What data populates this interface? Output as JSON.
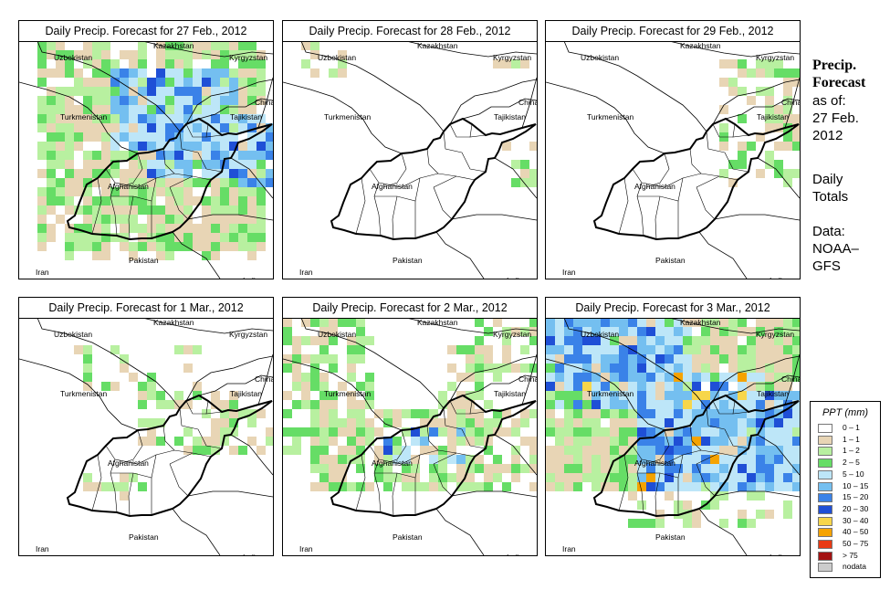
{
  "panels": [
    {
      "title": "Daily Precip. Forecast for  27 Feb., 2012",
      "wet": [
        [
          0.05,
          0.95,
          0.0,
          0.85,
          0.8
        ],
        [
          0.15,
          0.95,
          0.3,
          0.9,
          0.5
        ]
      ],
      "blue": [
        [
          0.35,
          0.85,
          0.08,
          0.45,
          0.75
        ],
        [
          0.5,
          0.9,
          0.3,
          0.55,
          0.8
        ],
        [
          0.8,
          1.0,
          0.3,
          0.6,
          0.5
        ]
      ],
      "seed": 7
    },
    {
      "title": "Daily Precip. Forecast for  28 Feb., 2012",
      "wet": [
        [
          0.05,
          0.25,
          0.0,
          0.12,
          0.35
        ],
        [
          0.72,
          0.95,
          0.05,
          0.15,
          0.35
        ],
        [
          0.85,
          1.0,
          0.42,
          0.6,
          0.4
        ]
      ],
      "blue": [],
      "seed": 11
    },
    {
      "title": "Daily Precip. Forecast for  29 Feb., 2012",
      "wet": [
        [
          0.65,
          1.0,
          0.05,
          0.6,
          0.45
        ],
        [
          0.88,
          1.0,
          0.05,
          0.4,
          0.45
        ]
      ],
      "blue": [],
      "seed": 19
    },
    {
      "title": "Daily Precip. Forecast for  1 Mar., 2012",
      "wet": [
        [
          0.2,
          0.7,
          0.1,
          0.3,
          0.3
        ],
        [
          0.45,
          1.0,
          0.3,
          0.55,
          0.45
        ],
        [
          0.25,
          0.5,
          0.65,
          0.75,
          0.3
        ]
      ],
      "blue": [],
      "seed": 23
    },
    {
      "title": "Daily Precip. Forecast for  2 Mar., 2012",
      "wet": [
        [
          0.0,
          0.35,
          0.0,
          0.55,
          0.6
        ],
        [
          0.1,
          1.0,
          0.35,
          0.7,
          0.65
        ],
        [
          0.7,
          1.0,
          0.0,
          0.2,
          0.5
        ],
        [
          0.6,
          0.85,
          0.1,
          0.4,
          0.45
        ]
      ],
      "blue": [
        [
          0.35,
          0.7,
          0.45,
          0.6,
          0.3
        ]
      ],
      "seed": 31
    },
    {
      "title": "Daily Precip. Forecast for  3 Mar., 2012",
      "wet": [
        [
          0.0,
          1.0,
          0.0,
          0.35,
          0.95
        ],
        [
          0.0,
          1.0,
          0.35,
          0.7,
          0.9
        ],
        [
          0.3,
          1.0,
          0.7,
          0.85,
          0.45
        ]
      ],
      "blue": [
        [
          0.0,
          0.55,
          0.0,
          0.35,
          0.85
        ],
        [
          0.35,
          1.0,
          0.3,
          0.7,
          0.9
        ],
        [
          0.55,
          0.85,
          0.2,
          0.45,
          0.8
        ],
        [
          0.8,
          1.0,
          0.4,
          0.7,
          0.85
        ]
      ],
      "seed": 47
    }
  ],
  "country_labels": {
    "kazakhstan": "Kazakhstan",
    "uzbekistan": "Uzbekistan",
    "kyrgyzstan": "Kyrgyzstan",
    "china": "China",
    "turkmenistan": "Turkmenistan",
    "tajikistan": "Tajikistan",
    "afghanistan": "Afghanistan",
    "pakistan": "Pakistan",
    "iran": "Iran",
    "india": "India"
  },
  "side_info": {
    "title_line1": "Precip.",
    "title_line2": "Forecast",
    "asof": "as of:",
    "date_line1": "27 Feb.",
    "date_line2": "2012",
    "totals_line1": "Daily",
    "totals_line2": "Totals",
    "data_line1": "Data:",
    "data_line2": "NOAA–",
    "data_line3": "GFS"
  },
  "legend": {
    "title": "PPT (mm)",
    "items": [
      {
        "label": "0 – 1",
        "color": "#ffffff"
      },
      {
        "label": "1 – 1",
        "color": "#e8d5b5"
      },
      {
        "label": "1 – 2",
        "color": "#b8f0a0"
      },
      {
        "label": "2 – 5",
        "color": "#66dd66"
      },
      {
        "label": "5 – 10",
        "color": "#bde6f8"
      },
      {
        "label": "10 – 15",
        "color": "#74bff0"
      },
      {
        "label": "15 – 20",
        "color": "#3a82e8"
      },
      {
        "label": "20 – 30",
        "color": "#1f4fd6"
      },
      {
        "label": "30 – 40",
        "color": "#f7d64a"
      },
      {
        "label": "40 – 50",
        "color": "#f5a300"
      },
      {
        "label": "50 – 75",
        "color": "#e83a14"
      },
      {
        "label": "> 75",
        "color": "#a31313"
      },
      {
        "label": "nodata",
        "color": "#cccccc"
      }
    ]
  }
}
